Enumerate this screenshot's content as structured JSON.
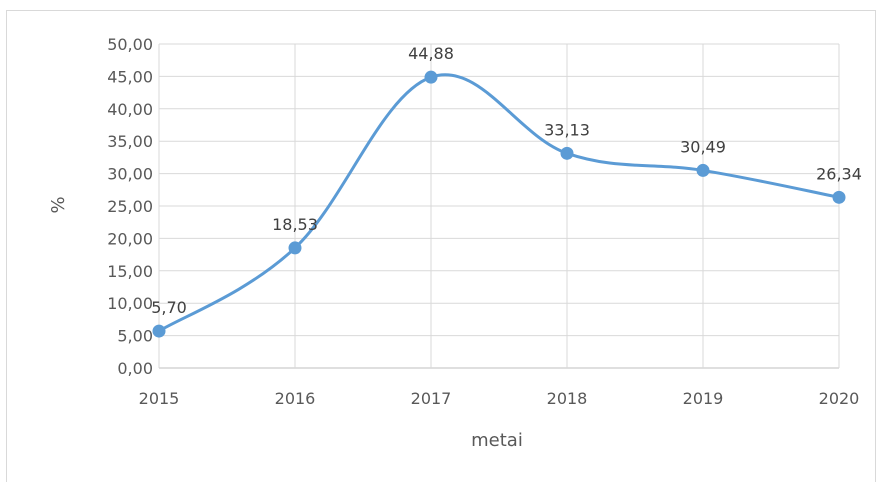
{
  "chart_data": {
    "type": "line",
    "smooth": true,
    "title": "",
    "xlabel": "metai",
    "ylabel": "%",
    "categories": [
      "2015",
      "2016",
      "2017",
      "2018",
      "2019",
      "2020"
    ],
    "series": [
      {
        "values": [
          5.7,
          18.53,
          44.88,
          33.13,
          30.49,
          26.34
        ],
        "data_labels": [
          "5,70",
          "18,53",
          "44,88",
          "33,13",
          "30,49",
          "26,34"
        ],
        "color": "#5b9bd5"
      }
    ],
    "ylim": [
      0,
      50
    ],
    "yticks": [
      "0,00",
      "5,00",
      "10,00",
      "15,00",
      "20,00",
      "25,00",
      "30,00",
      "35,00",
      "40,00",
      "45,00",
      "50,00"
    ],
    "grid": true,
    "legend": "none"
  }
}
